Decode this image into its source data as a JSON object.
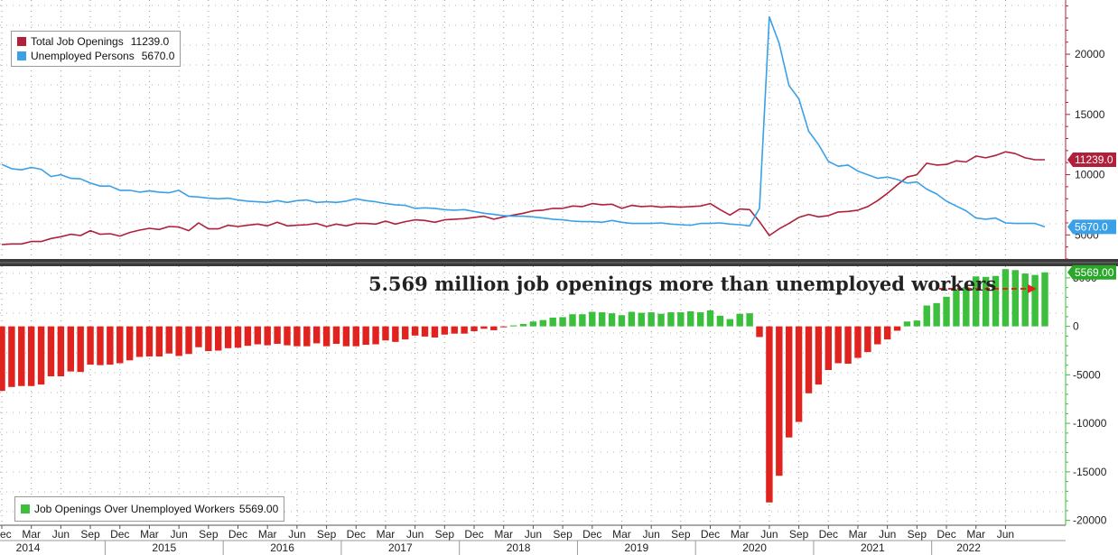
{
  "chart_data": [
    {
      "type": "line",
      "panel": "top",
      "ylim": [
        3000,
        24500
      ],
      "yticks": [
        5000,
        10000,
        15000,
        20000
      ],
      "grid": true,
      "legend_position": "top-left",
      "series": [
        {
          "name": "Total Job Openings",
          "last_label": "11239.0",
          "color": "#b0203a",
          "values": [
            4200,
            4250,
            4250,
            4450,
            4450,
            4700,
            4850,
            5050,
            4950,
            5350,
            5050,
            5100,
            4900,
            5200,
            5400,
            5550,
            5450,
            5700,
            5650,
            5350,
            6000,
            5500,
            5500,
            5800,
            5700,
            5800,
            5900,
            5750,
            6050,
            5750,
            5800,
            5850,
            5950,
            5700,
            5900,
            5750,
            5950,
            5950,
            5900,
            6150,
            5900,
            6100,
            6250,
            6200,
            6050,
            6250,
            6300,
            6350,
            6450,
            6550,
            6300,
            6500,
            6650,
            6800,
            7000,
            7050,
            7200,
            7200,
            7400,
            7350,
            7600,
            7500,
            7550,
            7200,
            7450,
            7350,
            7400,
            7300,
            7350,
            7300,
            7350,
            7400,
            7600,
            7100,
            6650,
            7150,
            7100,
            6100,
            4950,
            5500,
            5950,
            6450,
            6700,
            6500,
            6600,
            6900,
            6950,
            7050,
            7350,
            7850,
            8450,
            9150,
            9800,
            10000,
            10950,
            10800,
            10850,
            11150,
            11050,
            11550,
            11400,
            11600,
            11900,
            11750,
            11400,
            11239,
            11239
          ]
        },
        {
          "name": "Unemployed Persons",
          "last_label": "5670.0",
          "color": "#3aa0e8",
          "values": [
            10850,
            10500,
            10400,
            10600,
            10450,
            9850,
            10000,
            9700,
            9650,
            9300,
            9050,
            9050,
            8700,
            8700,
            8550,
            8650,
            8550,
            8500,
            8700,
            8200,
            8150,
            8050,
            8000,
            8050,
            7900,
            7800,
            7750,
            7700,
            7850,
            7700,
            7850,
            7900,
            7700,
            7750,
            7700,
            7800,
            8000,
            7850,
            7750,
            7600,
            7500,
            7450,
            7200,
            7250,
            7200,
            7100,
            7050,
            7100,
            6950,
            6800,
            6700,
            6600,
            6550,
            6550,
            6500,
            6400,
            6300,
            6250,
            6150,
            6100,
            6100,
            6050,
            6200,
            6050,
            5950,
            5950,
            5950,
            6000,
            5900,
            5850,
            5800,
            5950,
            5950,
            6000,
            5900,
            5850,
            5750,
            7200,
            23100,
            20900,
            17400,
            16300,
            13600,
            12500,
            11100,
            10700,
            10800,
            10300,
            10000,
            9700,
            9800,
            9600,
            9300,
            9400,
            8800,
            8400,
            7800,
            7400,
            7000,
            6400,
            6300,
            6400,
            6000,
            5950,
            5950,
            5950,
            5670
          ]
        }
      ]
    },
    {
      "type": "bar",
      "panel": "bottom",
      "ylim": [
        -20500,
        6200
      ],
      "yticks": [
        5000,
        0,
        -5000,
        -10000,
        -15000,
        -20000
      ],
      "grid": true,
      "legend_position": "bottom-left",
      "positive_color": "#3cbf3c",
      "negative_color": "#e0231f",
      "series": [
        {
          "name": "Job Openings Over Unemployed Workers",
          "legend_value": "5569.00",
          "last_label": "5569.00",
          "values": [
            -6650,
            -6250,
            -6150,
            -6150,
            -6000,
            -5150,
            -5150,
            -4650,
            -4700,
            -3950,
            -4000,
            -3950,
            -3800,
            -3500,
            -3150,
            -3100,
            -3100,
            -2800,
            -3050,
            -2850,
            -2150,
            -2550,
            -2500,
            -2250,
            -2200,
            -2000,
            -1850,
            -1950,
            -1800,
            -1950,
            -2050,
            -2050,
            -1750,
            -2050,
            -1800,
            -2050,
            -2050,
            -1900,
            -1850,
            -1450,
            -1600,
            -1350,
            -950,
            -1050,
            -1150,
            -850,
            -750,
            -750,
            -500,
            -250,
            -400,
            -100,
            100,
            250,
            500,
            650,
            900,
            950,
            1250,
            1250,
            1500,
            1450,
            1350,
            1150,
            1500,
            1400,
            1450,
            1300,
            1450,
            1450,
            1550,
            1450,
            1650,
            1100,
            750,
            1300,
            1350,
            -1100,
            -18150,
            -15400,
            -11450,
            -9850,
            -6900,
            -6000,
            -4500,
            -3800,
            -3850,
            -3250,
            -2650,
            -1850,
            -1350,
            -450,
            500,
            600,
            2150,
            2400,
            3050,
            3750,
            4050,
            5150,
            5100,
            5200,
            5900,
            5800,
            5450,
            5300,
            5569
          ]
        }
      ]
    }
  ],
  "x_axis": {
    "months": [
      "Dec",
      "Mar",
      "Jun",
      "Sep",
      "Dec",
      "Mar",
      "Jun",
      "Sep",
      "Dec",
      "Mar",
      "Jun",
      "Sep",
      "Dec",
      "Mar",
      "Jun",
      "Sep",
      "Dec",
      "Mar",
      "Jun",
      "Sep",
      "Dec",
      "Mar",
      "Jun",
      "Sep",
      "Dec",
      "Mar",
      "Jun",
      "Sep",
      "Dec",
      "Mar",
      "Jun",
      "Sep",
      "Dec",
      "Mar",
      "Jun"
    ],
    "years": [
      "2014",
      "2015",
      "2016",
      "2017",
      "2018",
      "2019",
      "2020",
      "2021",
      "2022"
    ]
  },
  "legend_top": {
    "items": [
      {
        "label": "Total Job Openings",
        "value": "11239.0",
        "color": "#b0203a"
      },
      {
        "label": "Unemployed Persons",
        "value": "5670.0",
        "color": "#3aa0e8"
      }
    ]
  },
  "legend_bottom": {
    "label": "Job Openings Over Unemployed Workers",
    "value": "5569.00",
    "color": "#3cbf3c"
  },
  "annotation": {
    "text": "5.569 million job openings more than unemployed workers"
  }
}
